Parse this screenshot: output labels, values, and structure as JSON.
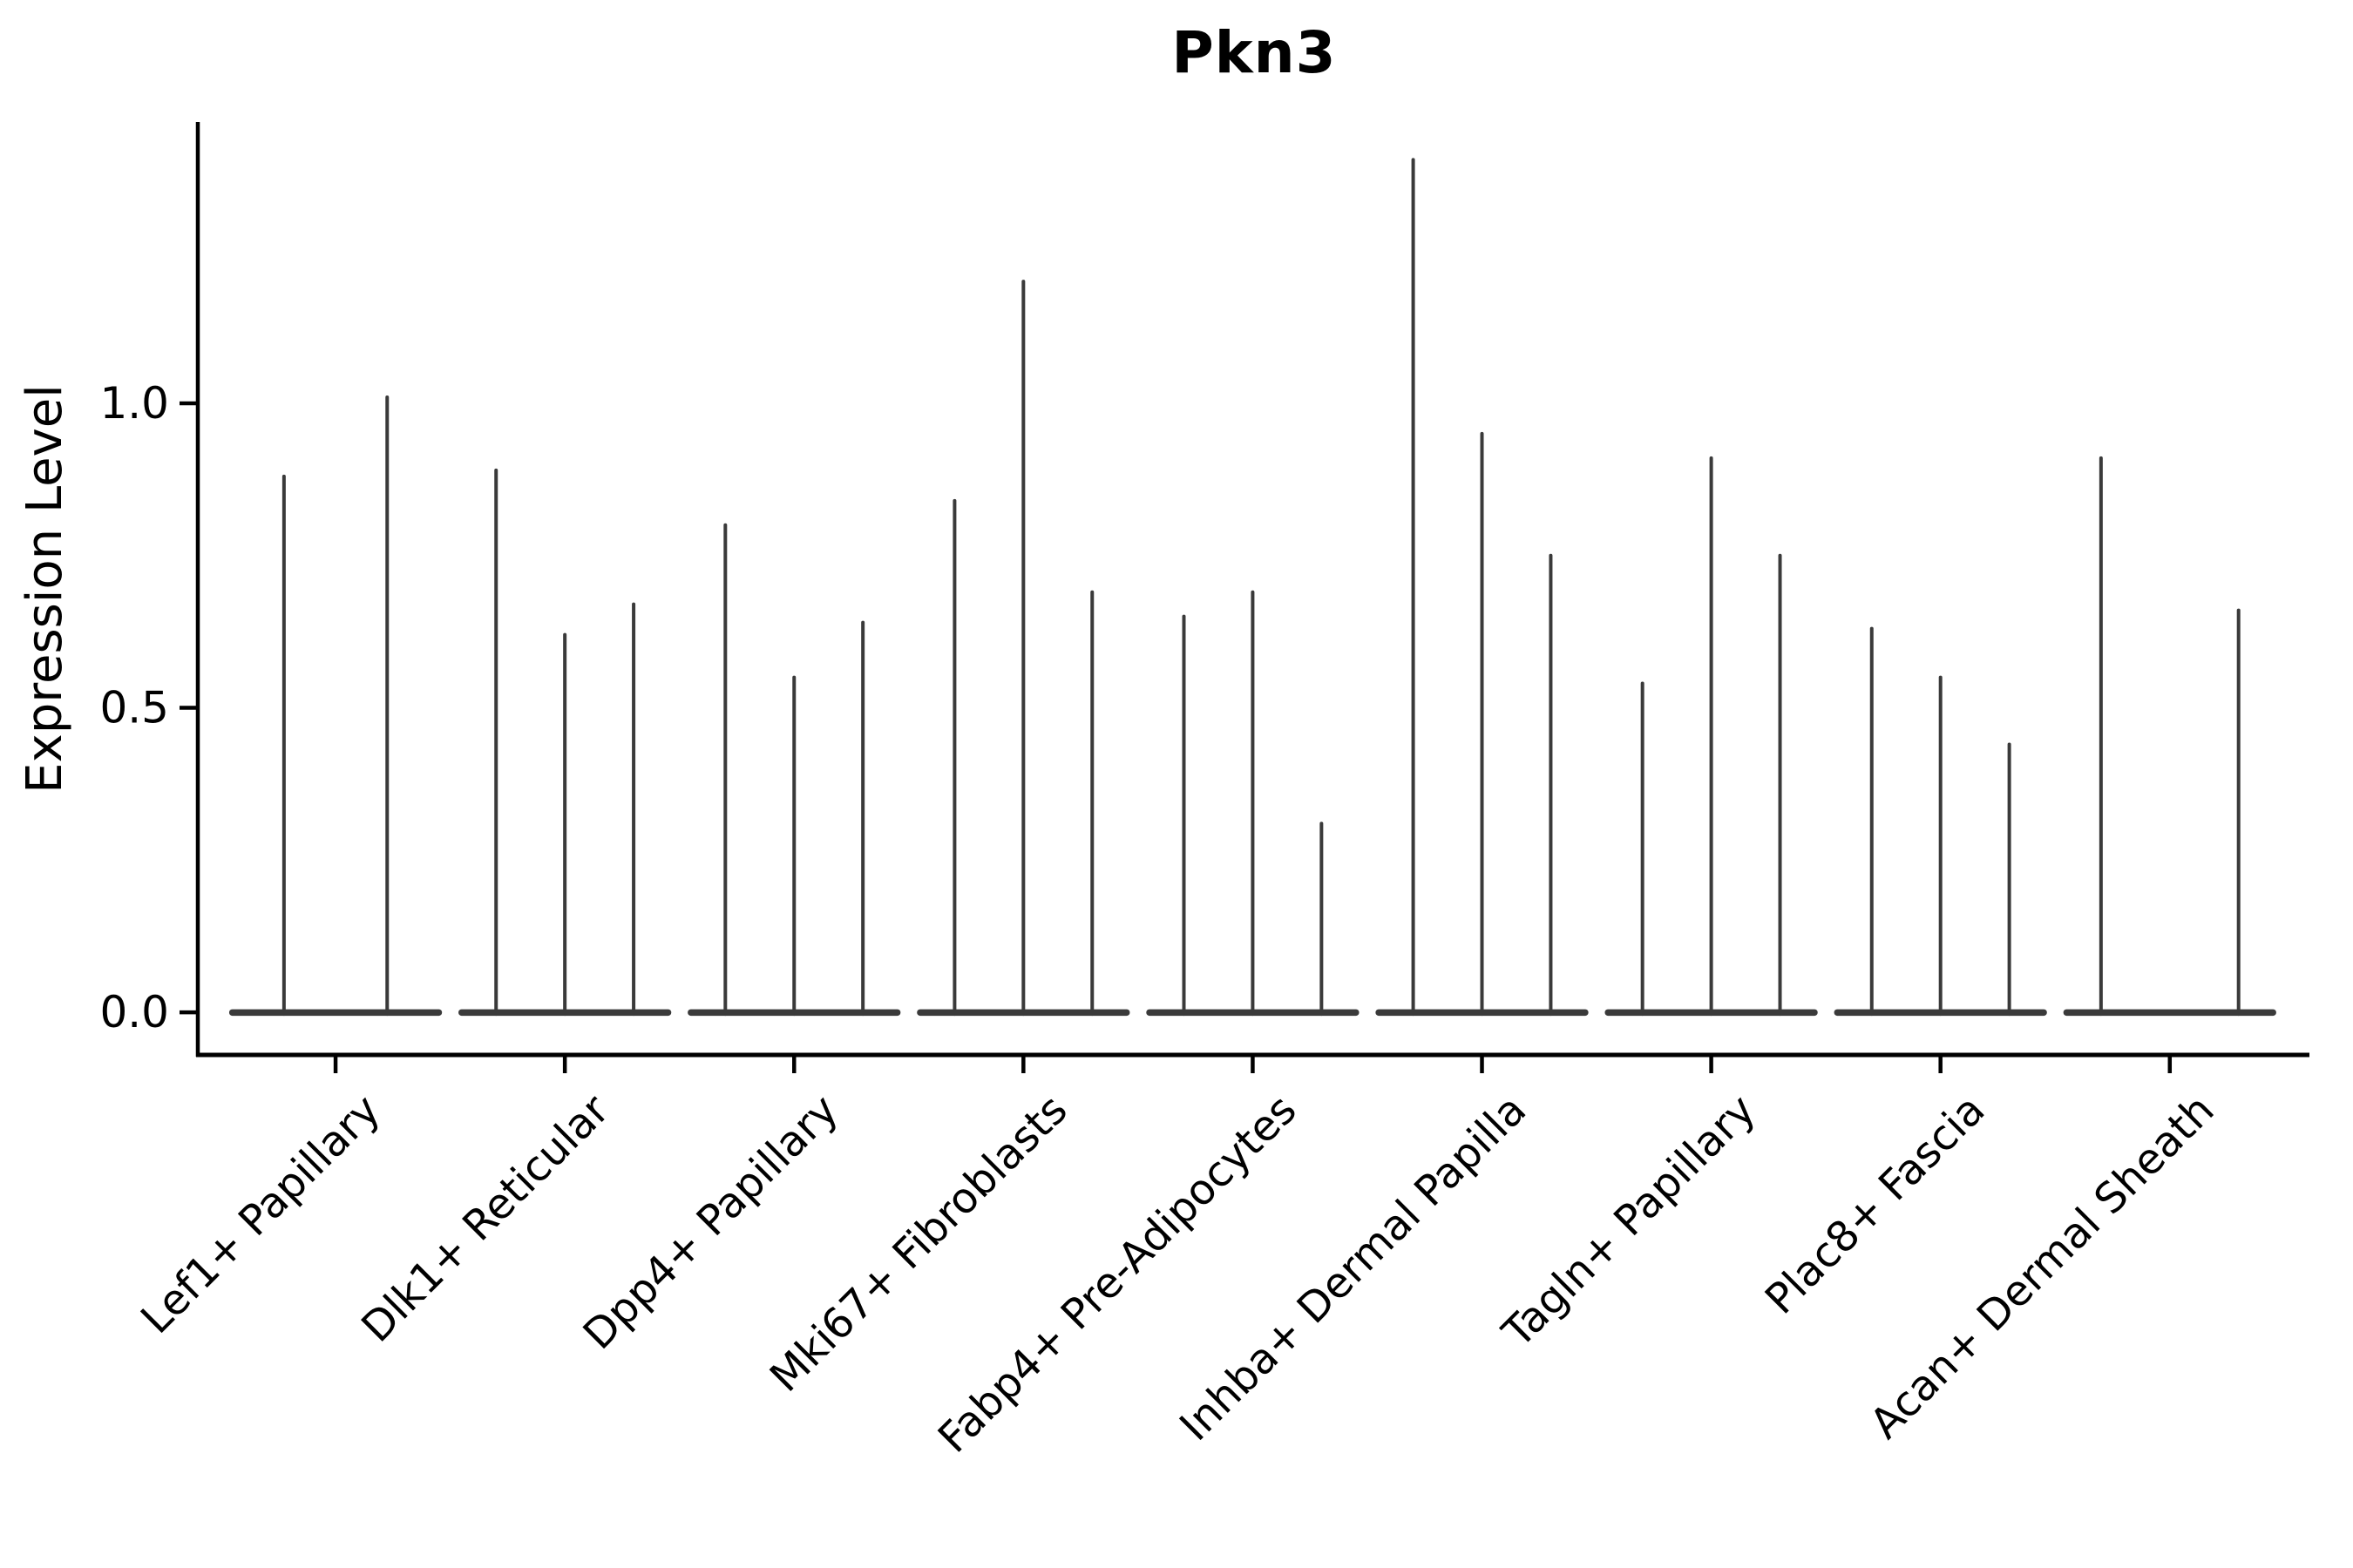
{
  "title": "Pkn3",
  "y_axis_title": "Expression Level",
  "colors": {
    "background": "#ffffff",
    "axis": "#000000",
    "text": "#000000",
    "violin": "#3a3a3a"
  },
  "chart_data": {
    "type": "violin",
    "title": "Pkn3",
    "xlabel": "",
    "ylabel": "Expression Level",
    "grid": false,
    "legend": null,
    "y_ticks": [
      0.0,
      0.5,
      1.0
    ],
    "y_tick_labels": [
      "0.0",
      "0.5",
      "1.0"
    ],
    "ylim": [
      -0.07,
      1.462
    ],
    "xlim": [
      -0.597,
      8.609
    ],
    "categories": [
      "Lef1+ Papillary",
      "Dlk1+ Reticular",
      "Dpp4+ Papillary",
      "Mki67+ Fibroblasts",
      "Fabp4+ Pre-Adipocytes",
      "Inhba+ Dermal Papilla",
      "Tagln+ Papillary",
      "Plac8+ Fascia",
      "Acan+ Dermal Sheath"
    ],
    "violin_description": "Each category shows 2-3 very thin violins: distribution mass concentrated at 0 (wide flat base) with a thin spike up to the max expression value.",
    "base_halfwidth": 0.464,
    "violins": [
      {
        "category": "Lef1+ Papillary",
        "spikes": [
          {
            "offset": -0.225,
            "max": 0.88
          },
          {
            "offset": 0.225,
            "max": 1.01
          }
        ]
      },
      {
        "category": "Dlk1+ Reticular",
        "spikes": [
          {
            "offset": -0.3,
            "max": 0.89
          },
          {
            "offset": 0.0,
            "max": 0.62
          },
          {
            "offset": 0.3,
            "max": 0.67
          }
        ]
      },
      {
        "category": "Dpp4+ Papillary",
        "spikes": [
          {
            "offset": -0.3,
            "max": 0.8
          },
          {
            "offset": 0.0,
            "max": 0.55
          },
          {
            "offset": 0.3,
            "max": 0.64
          }
        ]
      },
      {
        "category": "Mki67+ Fibroblasts",
        "spikes": [
          {
            "offset": -0.3,
            "max": 0.84
          },
          {
            "offset": 0.0,
            "max": 1.2
          },
          {
            "offset": 0.3,
            "max": 0.69
          }
        ]
      },
      {
        "category": "Fabp4+ Pre-Adipocytes",
        "spikes": [
          {
            "offset": -0.3,
            "max": 0.65
          },
          {
            "offset": 0.0,
            "max": 0.69
          },
          {
            "offset": 0.3,
            "max": 0.31
          }
        ]
      },
      {
        "category": "Inhba+ Dermal Papilla",
        "spikes": [
          {
            "offset": -0.3,
            "max": 1.4
          },
          {
            "offset": 0.0,
            "max": 0.95
          },
          {
            "offset": 0.3,
            "max": 0.75
          }
        ]
      },
      {
        "category": "Tagln+ Papillary",
        "spikes": [
          {
            "offset": -0.3,
            "max": 0.54
          },
          {
            "offset": 0.0,
            "max": 0.91
          },
          {
            "offset": 0.3,
            "max": 0.75
          }
        ]
      },
      {
        "category": "Plac8+ Fascia",
        "spikes": [
          {
            "offset": -0.3,
            "max": 0.63
          },
          {
            "offset": 0.0,
            "max": 0.55
          },
          {
            "offset": 0.3,
            "max": 0.44
          }
        ]
      },
      {
        "category": "Acan+ Dermal Sheath",
        "spikes": [
          {
            "offset": -0.3,
            "max": 0.91
          },
          {
            "offset": 0.3,
            "max": 0.66
          }
        ]
      }
    ]
  }
}
